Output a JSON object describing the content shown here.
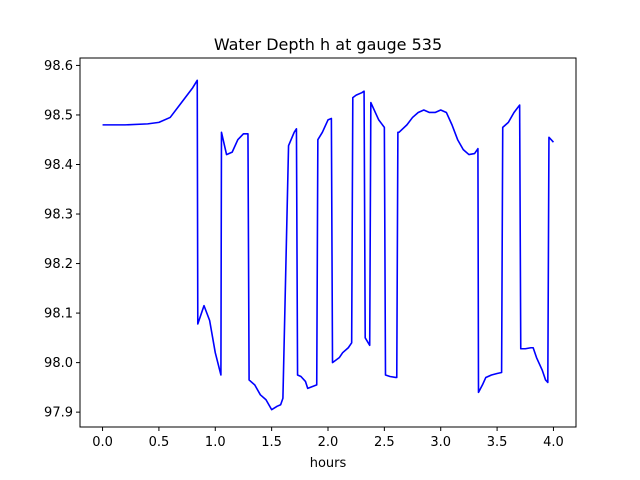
{
  "chart_data": {
    "type": "line",
    "title": "Water Depth h at gauge 535",
    "xlabel": "hours",
    "ylabel": "",
    "xlim": [
      -0.2,
      4.2
    ],
    "ylim": [
      97.87,
      98.615
    ],
    "xticks": [
      0.0,
      0.5,
      1.0,
      1.5,
      2.0,
      2.5,
      3.0,
      3.5,
      4.0
    ],
    "xtick_labels": [
      "0.0",
      "0.5",
      "1.0",
      "1.5",
      "2.0",
      "2.5",
      "3.0",
      "3.5",
      "4.0"
    ],
    "yticks": [
      97.9,
      98.0,
      98.1,
      98.2,
      98.3,
      98.4,
      98.5,
      98.6
    ],
    "ytick_labels": [
      "97.9",
      "98.0",
      "98.1",
      "98.2",
      "98.3",
      "98.4",
      "98.5",
      "98.6"
    ],
    "grid": false,
    "legend": "none",
    "series": [
      {
        "color": "#0000ff",
        "x": [
          0.0,
          0.2,
          0.4,
          0.5,
          0.6,
          0.7,
          0.8,
          0.84,
          0.845,
          0.9,
          0.95,
          1.0,
          1.05,
          1.055,
          1.1,
          1.15,
          1.2,
          1.25,
          1.29,
          1.3,
          1.35,
          1.4,
          1.45,
          1.5,
          1.55,
          1.58,
          1.6,
          1.65,
          1.7,
          1.72,
          1.73,
          1.76,
          1.8,
          1.82,
          1.9,
          1.91,
          1.95,
          2.0,
          2.03,
          2.04,
          2.07,
          2.1,
          2.13,
          2.18,
          2.21,
          2.22,
          2.25,
          2.3,
          2.32,
          2.33,
          2.37,
          2.38,
          2.4,
          2.45,
          2.5,
          2.51,
          2.55,
          2.6,
          2.61,
          2.62,
          2.63,
          2.7,
          2.75,
          2.8,
          2.85,
          2.9,
          2.95,
          3.0,
          3.05,
          3.1,
          3.15,
          3.2,
          3.25,
          3.3,
          3.33,
          3.335,
          3.37,
          3.4,
          3.45,
          3.5,
          3.54,
          3.55,
          3.6,
          3.65,
          3.7,
          3.71,
          3.75,
          3.8,
          3.82,
          3.85,
          3.9,
          3.93,
          3.95,
          3.96,
          4.0
        ],
        "y": [
          98.48,
          98.48,
          98.482,
          98.485,
          98.495,
          98.525,
          98.555,
          98.57,
          98.078,
          98.115,
          98.085,
          98.02,
          97.975,
          98.465,
          98.42,
          98.425,
          98.45,
          98.462,
          98.462,
          97.965,
          97.955,
          97.935,
          97.925,
          97.905,
          97.912,
          97.915,
          97.928,
          98.438,
          98.465,
          98.472,
          97.975,
          97.972,
          97.962,
          97.948,
          97.955,
          98.45,
          98.465,
          98.49,
          98.493,
          98.0,
          98.005,
          98.01,
          98.02,
          98.03,
          98.04,
          98.535,
          98.54,
          98.545,
          98.548,
          98.05,
          98.035,
          98.525,
          98.515,
          98.49,
          98.475,
          97.975,
          97.972,
          97.97,
          97.97,
          98.465,
          98.465,
          98.48,
          98.495,
          98.505,
          98.51,
          98.505,
          98.505,
          98.51,
          98.505,
          98.48,
          98.45,
          98.43,
          98.42,
          98.422,
          98.432,
          97.94,
          97.955,
          97.97,
          97.975,
          97.978,
          97.98,
          98.475,
          98.485,
          98.505,
          98.52,
          98.028,
          98.028,
          98.03,
          98.03,
          98.01,
          97.985,
          97.965,
          97.96,
          98.455,
          98.445
        ]
      }
    ]
  }
}
